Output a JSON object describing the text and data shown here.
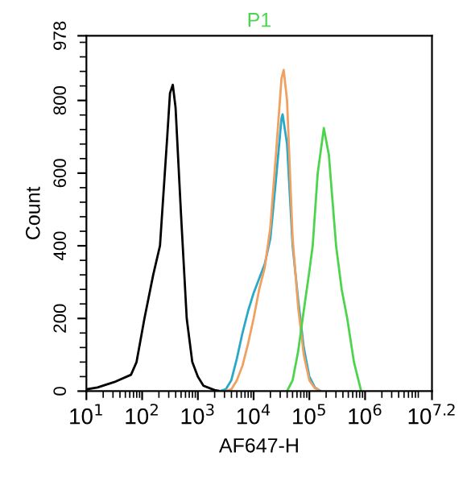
{
  "chart_data": {
    "type": "line",
    "title": "P1",
    "xlabel": "AF647-H",
    "ylabel": "Count",
    "log": "x",
    "xlim": [
      10,
      15848932
    ],
    "xticks": [
      {
        "value": 10,
        "label": "10$^{1}$"
      },
      {
        "value": 100,
        "label": "10$^{2}$"
      },
      {
        "value": 1000,
        "label": "10$^{3}$"
      },
      {
        "value": 10000,
        "label": "10$^{4}$"
      },
      {
        "value": 100000,
        "label": "10$^{5}$"
      },
      {
        "value": 1000000,
        "label": "10$^{6}$"
      },
      {
        "value": 15848932,
        "label": "10$^{7.2}$"
      }
    ],
    "ylim": [
      0,
      978
    ],
    "yticks": [
      0,
      200,
      400,
      600,
      800,
      978
    ],
    "grid": false,
    "marker": "none",
    "line_style": "solid",
    "series": [
      {
        "color": "#000000",
        "x": [
          10,
          15.8,
          31.6,
          63.1,
          79.4,
          110,
          158,
          209,
          282,
          316,
          355,
          398,
          501,
          631,
          794,
          1000,
          1259,
          1995,
          2512
        ],
        "values": [
          5,
          10,
          25,
          45,
          80,
          200,
          320,
          400,
          700,
          820,
          843,
          780,
          480,
          200,
          80,
          40,
          15,
          3,
          0
        ]
      },
      {
        "color": "#2aa8c8",
        "x": [
          2512,
          3162,
          3981,
          5012,
          6310,
          7943,
          10000,
          12590,
          15850,
          19950,
          25120,
          31620,
          33110,
          39810,
          50120,
          63100,
          79430,
          100000,
          125900,
          158500
        ],
        "values": [
          0,
          5,
          30,
          90,
          160,
          220,
          270,
          310,
          350,
          420,
          580,
          750,
          762,
          680,
          400,
          250,
          120,
          40,
          10,
          0
        ]
      },
      {
        "color": "#f0a060",
        "x": [
          3162,
          3981,
          5012,
          6310,
          7943,
          10000,
          12590,
          15850,
          19950,
          25120,
          31620,
          34670,
          39810,
          50120,
          63100,
          79430,
          100000,
          125900,
          158500
        ],
        "values": [
          0,
          5,
          30,
          70,
          130,
          200,
          280,
          340,
          450,
          650,
          860,
          884,
          800,
          420,
          230,
          100,
          30,
          8,
          0
        ]
      },
      {
        "color": "#4cd44c",
        "x": [
          39810,
          50120,
          63100,
          75860,
          100000,
          114800,
          141300,
          182000,
          223900,
          302000,
          380200,
          478600,
          631000,
          851100
        ],
        "values": [
          0,
          30,
          110,
          200,
          330,
          400,
          600,
          724,
          650,
          400,
          280,
          200,
          80,
          0
        ]
      }
    ]
  }
}
